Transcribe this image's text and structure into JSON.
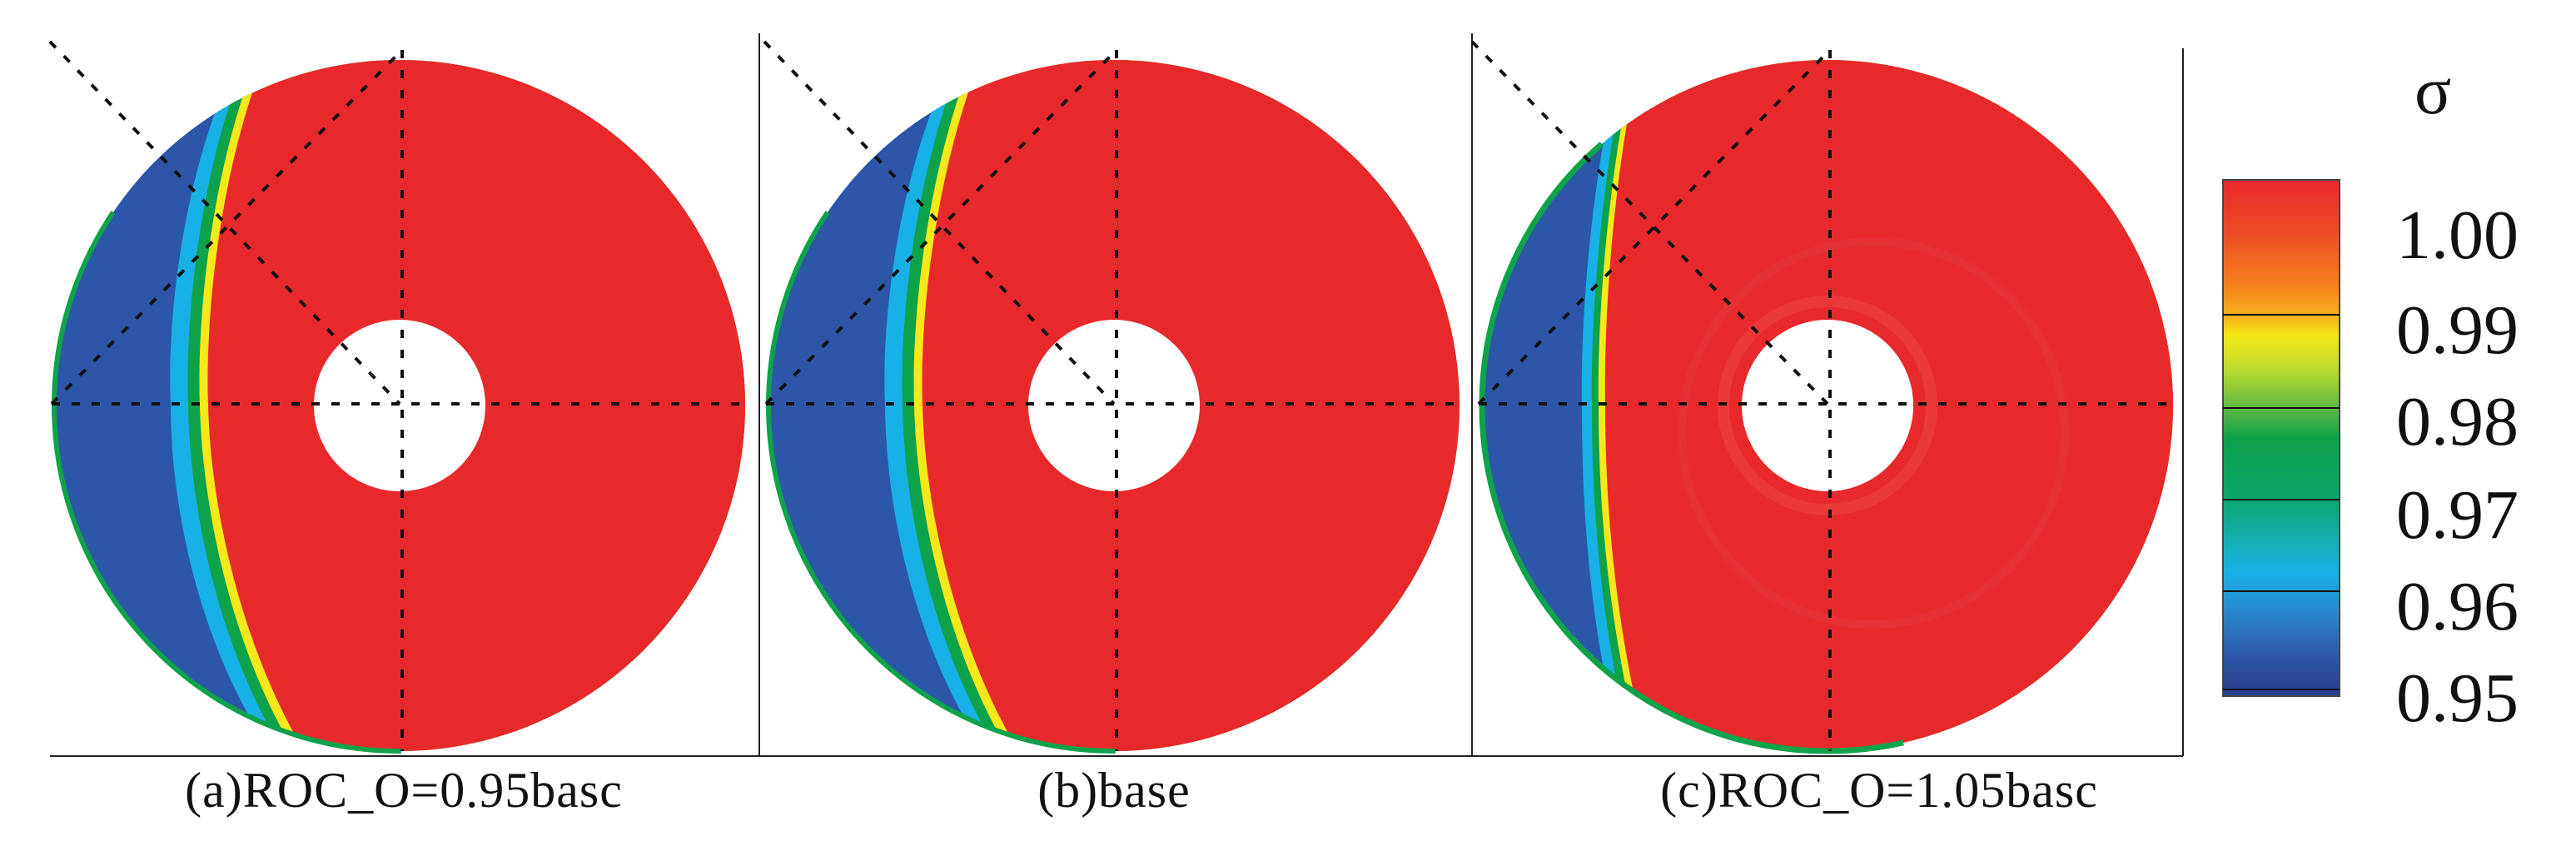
{
  "panels": [
    {
      "id": "a",
      "caption": "(a)ROC_O=0.95basc",
      "shock": "curved"
    },
    {
      "id": "b",
      "caption": "(b)base",
      "shock": "curved"
    },
    {
      "id": "c",
      "caption": "(c)ROC_O=1.05basc",
      "shock": "straight"
    }
  ],
  "colorbar": {
    "title": "σ",
    "ticks": [
      "1.00",
      "0.99",
      "0.98",
      "0.97",
      "0.96",
      "0.95"
    ],
    "colors": {
      "high": "#e8292c",
      "orange": "#f47e20",
      "yellow": "#f6e81a",
      "green": "#0ea24a",
      "cyan": "#18b1e6",
      "blue": "#2c56a8",
      "deep_blue": "#2a3f8e"
    }
  }
}
